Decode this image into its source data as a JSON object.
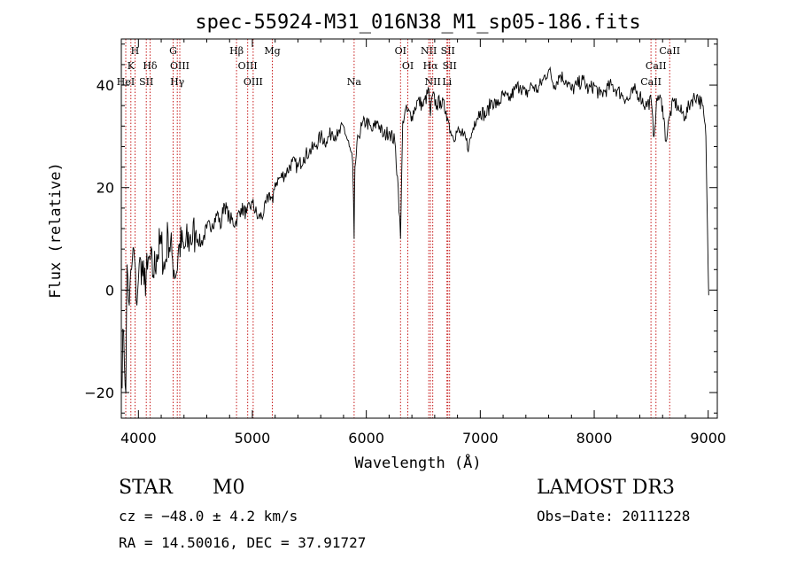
{
  "chart_data": {
    "type": "line",
    "title": "spec-55924-M31_016N38_M1_sp05-186.fits",
    "xlabel": "Wavelength (Å)",
    "ylabel": "Flux (relative)",
    "xlim": [
      3850,
      9080
    ],
    "ylim": [
      -25,
      49
    ],
    "xticks": [
      4000,
      5000,
      6000,
      7000,
      8000,
      9000
    ],
    "yticks": [
      -20,
      0,
      20,
      40
    ],
    "series": [
      {
        "name": "flux",
        "x": [
          3850,
          3870,
          3890,
          3900,
          3920,
          3940,
          3960,
          3980,
          4000,
          4020,
          4050,
          4080,
          4100,
          4130,
          4160,
          4200,
          4230,
          4260,
          4300,
          4330,
          4360,
          4400,
          4450,
          4500,
          4550,
          4600,
          4650,
          4700,
          4720,
          4750,
          4800,
          4850,
          4900,
          4950,
          5000,
          5050,
          5100,
          5150,
          5180,
          5200,
          5250,
          5300,
          5350,
          5400,
          5450,
          5500,
          5550,
          5600,
          5650,
          5700,
          5750,
          5800,
          5850,
          5880,
          5893,
          5900,
          5930,
          5960,
          6000,
          6050,
          6100,
          6150,
          6200,
          6250,
          6280,
          6300,
          6320,
          6340,
          6400,
          6450,
          6500,
          6550,
          6563,
          6580,
          6620,
          6650,
          6700,
          6720,
          6740,
          6760,
          6800,
          6850,
          6900,
          6950,
          7000,
          7050,
          7100,
          7150,
          7200,
          7250,
          7300,
          7350,
          7400,
          7450,
          7500,
          7550,
          7600,
          7650,
          7700,
          7750,
          7800,
          7850,
          7900,
          7950,
          8000,
          8050,
          8100,
          8150,
          8200,
          8250,
          8300,
          8350,
          8400,
          8450,
          8500,
          8520,
          8542,
          8560,
          8600,
          8630,
          8662,
          8700,
          8750,
          8800,
          8850,
          8900,
          8950,
          8980,
          9000,
          9005
        ],
        "values": [
          -18,
          -8,
          -20,
          5,
          -3,
          4,
          8,
          -2,
          2,
          6,
          1,
          4,
          6,
          3,
          7,
          9,
          4,
          11,
          6,
          3,
          9,
          8,
          10,
          11,
          9,
          12,
          13,
          15,
          12,
          17,
          14,
          13,
          16,
          15,
          17,
          14,
          15,
          19,
          17,
          21,
          22,
          23,
          25,
          24,
          26,
          27,
          28,
          30,
          29,
          31,
          30,
          32,
          28,
          25,
          10,
          24,
          30,
          32,
          33,
          31,
          33,
          30,
          31,
          29,
          20,
          10,
          33,
          35,
          34,
          37,
          36,
          39,
          34,
          38,
          36,
          37,
          35,
          33,
          31,
          30,
          31,
          30,
          28,
          33,
          35,
          34,
          37,
          36,
          38,
          37,
          39,
          40,
          38,
          40,
          39,
          41,
          43,
          40,
          42,
          41,
          39,
          40,
          41,
          39,
          40,
          38,
          39,
          40,
          39,
          38,
          37,
          39,
          38,
          36,
          37,
          30,
          35,
          38,
          36,
          29,
          34,
          37,
          35,
          34,
          37,
          38,
          36,
          30,
          4,
          -1
        ]
      }
    ],
    "spectral_lines": [
      {
        "label": "H",
        "wavelength": 3970,
        "row": 0
      },
      {
        "label": "K",
        "wavelength": 3934,
        "row": 1
      },
      {
        "label": "HeI",
        "wavelength": 3889,
        "row": 2
      },
      {
        "label": "SII",
        "wavelength": 4069,
        "row": 2
      },
      {
        "label": "Hδ",
        "wavelength": 4102,
        "row": 1
      },
      {
        "label": "G",
        "wavelength": 4305,
        "row": 0
      },
      {
        "label": "OIII",
        "wavelength": 4363,
        "row": 1
      },
      {
        "label": "Hγ",
        "wavelength": 4341,
        "row": 2
      },
      {
        "label": "Hβ",
        "wavelength": 4861,
        "row": 0
      },
      {
        "label": "OIII",
        "wavelength": 4959,
        "row": 1
      },
      {
        "label": "OIII",
        "wavelength": 5007,
        "row": 2
      },
      {
        "label": "Mg",
        "wavelength": 5175,
        "row": 0
      },
      {
        "label": "Na",
        "wavelength": 5893,
        "row": 2
      },
      {
        "label": "OI",
        "wavelength": 6300,
        "row": 0
      },
      {
        "label": "OI",
        "wavelength": 6364,
        "row": 1
      },
      {
        "label": "NII",
        "wavelength": 6548,
        "row": 0
      },
      {
        "label": "SII",
        "wavelength": 6716,
        "row": 0
      },
      {
        "label": "Hα",
        "wavelength": 6563,
        "row": 1
      },
      {
        "label": "SII",
        "wavelength": 6731,
        "row": 1
      },
      {
        "label": "NII",
        "wavelength": 6583,
        "row": 2
      },
      {
        "label": "Li",
        "wavelength": 6708,
        "row": 2
      },
      {
        "label": "CaII",
        "wavelength": 8662,
        "row": 0
      },
      {
        "label": "CaII",
        "wavelength": 8542,
        "row": 1
      },
      {
        "label": "CaII",
        "wavelength": 8498,
        "row": 2
      }
    ]
  },
  "info": {
    "class": "STAR",
    "subclass": "M0",
    "survey": "LAMOST DR3",
    "cz": "cz = −48.0 ± 4.2 km/s",
    "obs_date": "Obs−Date: 20111228",
    "radec": "RA =  14.50016, DEC =  37.91727"
  },
  "colors": {
    "line_marker": "#c00000",
    "spectrum": "#000000"
  }
}
